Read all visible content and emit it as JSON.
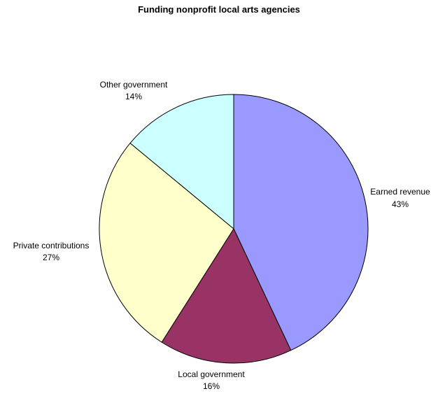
{
  "chart_data": {
    "type": "pie",
    "title": "Funding nonprofit local arts agencies",
    "slices": [
      {
        "label": "Earned revenue",
        "value": 43,
        "value_label": "43%",
        "color": "#9999ff"
      },
      {
        "label": "Local government",
        "value": 16,
        "value_label": "16%",
        "color": "#993366"
      },
      {
        "label": "Private contributions",
        "value": 27,
        "value_label": "27%",
        "color": "#ffffcc"
      },
      {
        "label": "Other government",
        "value": 14,
        "value_label": "14%",
        "color": "#ccffff"
      }
    ],
    "start_angle": "12 o'clock",
    "direction": "clockwise",
    "legend": "none",
    "slice_border_color": "#000000"
  }
}
